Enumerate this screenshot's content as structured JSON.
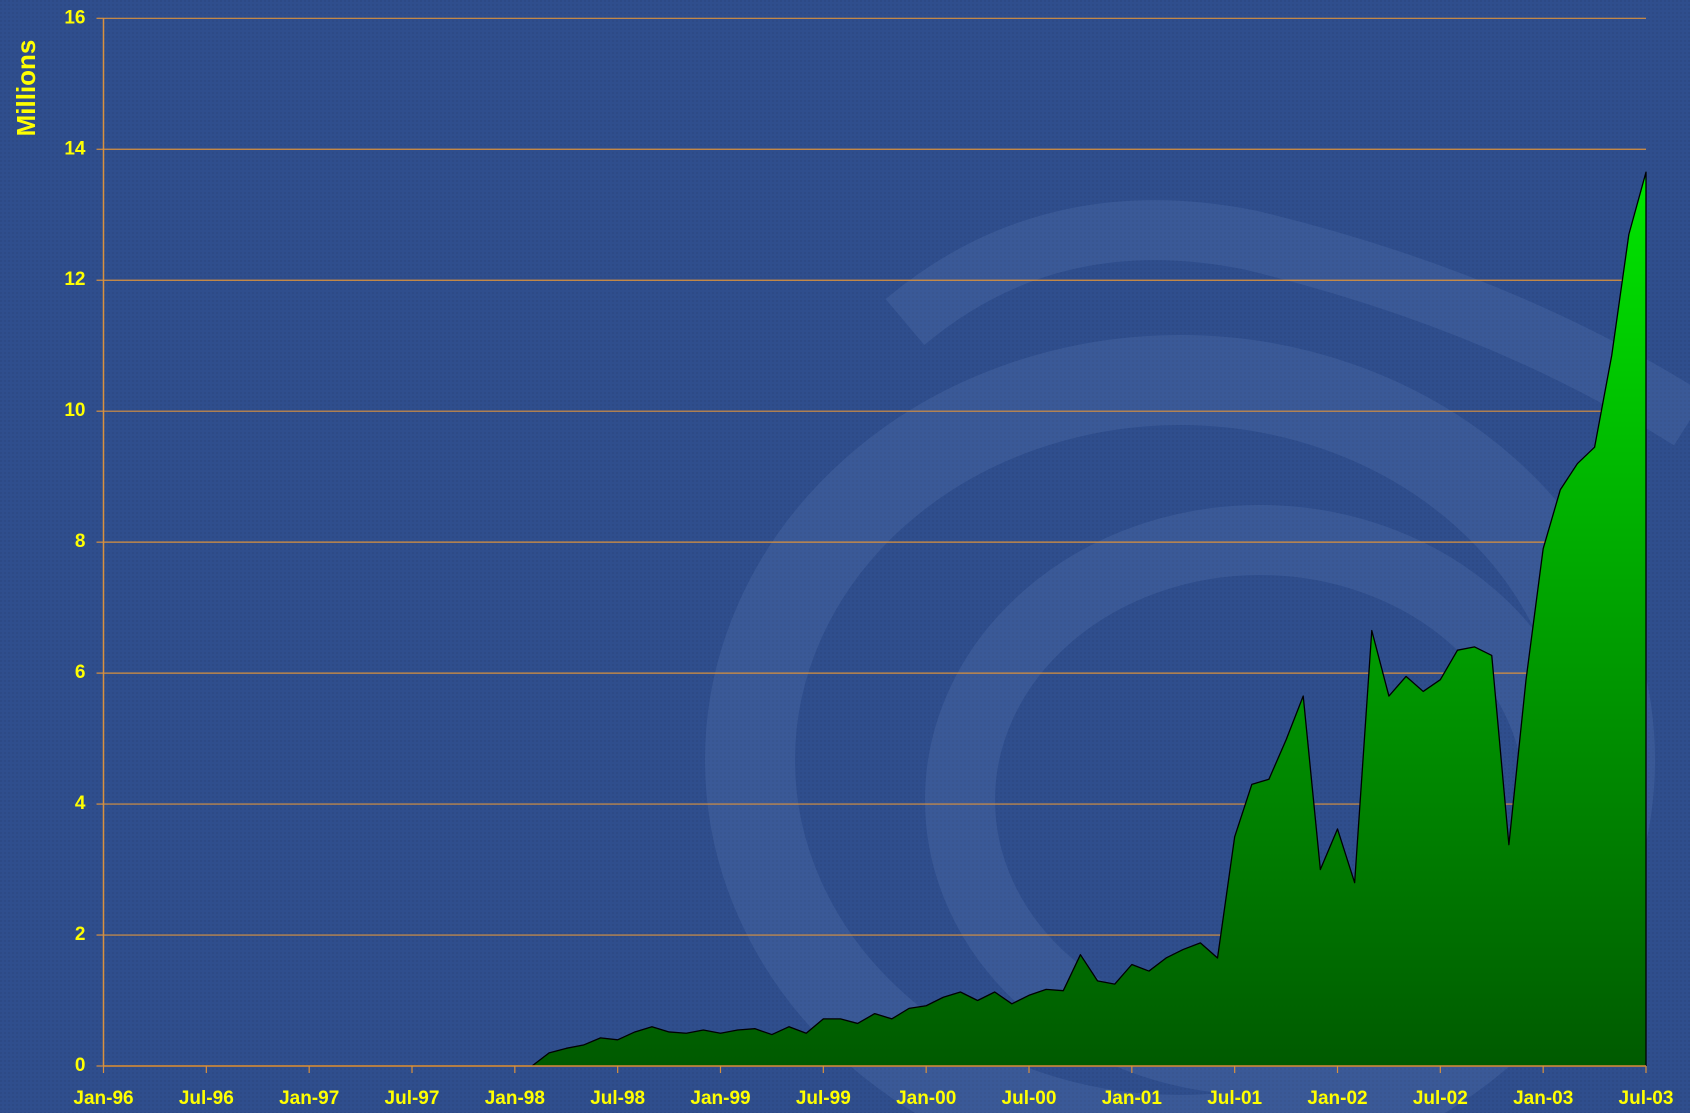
{
  "chart_data": {
    "type": "area",
    "y_label": "Millions",
    "categories": [
      "Jan-96",
      null,
      null,
      null,
      null,
      null,
      "Jul-96",
      null,
      null,
      null,
      null,
      null,
      "Jan-97",
      null,
      null,
      null,
      null,
      null,
      "Jul-97",
      null,
      null,
      null,
      null,
      null,
      "Jan-98",
      null,
      null,
      null,
      null,
      null,
      "Jul-98",
      null,
      null,
      null,
      null,
      null,
      "Jan-99",
      null,
      null,
      null,
      null,
      null,
      "Jul-99",
      null,
      null,
      null,
      null,
      null,
      "Jan-00",
      null,
      null,
      null,
      null,
      null,
      "Jul-00",
      null,
      null,
      null,
      null,
      null,
      "Jan-01",
      null,
      null,
      null,
      null,
      null,
      "Jul-01",
      null,
      null,
      null,
      null,
      null,
      "Jan-02",
      null,
      null,
      null,
      null,
      null,
      "Jul-02",
      null,
      null,
      null,
      null,
      null,
      "Jan-03",
      null,
      null,
      null,
      null,
      null,
      "Jul-03"
    ],
    "values": [
      0,
      0,
      0,
      0,
      0,
      0,
      0,
      0,
      0,
      0,
      0,
      0,
      0,
      0,
      0,
      0,
      0,
      0,
      0,
      0,
      0,
      0,
      0,
      0,
      0,
      0,
      0.2,
      0.27,
      0.32,
      0.43,
      0.4,
      0.52,
      0.6,
      0.52,
      0.5,
      0.55,
      0.5,
      0.55,
      0.57,
      0.48,
      0.6,
      0.5,
      0.72,
      0.72,
      0.65,
      0.8,
      0.72,
      0.88,
      0.92,
      1.05,
      1.13,
      1.0,
      1.13,
      0.95,
      1.08,
      1.17,
      1.15,
      1.7,
      1.3,
      1.25,
      1.55,
      1.45,
      1.65,
      1.78,
      1.88,
      1.65,
      3.5,
      4.3,
      4.38,
      4.98,
      5.65,
      3.0,
      3.62,
      2.8,
      6.65,
      5.65,
      5.95,
      5.72,
      5.9,
      6.35,
      6.4,
      6.27,
      3.38,
      5.9,
      7.9,
      8.8,
      9.2,
      9.45,
      10.85,
      12.7,
      13.65
    ],
    "gradient": [
      "#00ff00",
      "#005a00"
    ],
    "outline": "#000000",
    "ylim": [
      0,
      16
    ],
    "yticks": [
      0,
      2,
      4,
      6,
      8,
      10,
      12,
      14,
      16
    ],
    "grid": true,
    "grid_color": "#d9913e",
    "background": "#2b4a8b",
    "text_color": "#ffff00"
  }
}
